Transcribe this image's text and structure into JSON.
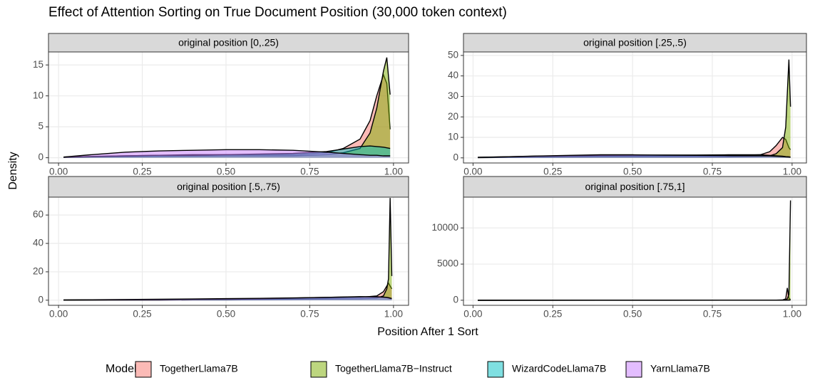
{
  "title": "Effect of Attention Sorting on True Document Position (30,000 token context)",
  "x_label": "Position After 1 Sort",
  "y_label": "Density",
  "legend_title": "Model",
  "chart_data": [
    {
      "type": "area",
      "title": "original position [0,.25)",
      "x": [
        0.015,
        0.1,
        0.2,
        0.3,
        0.4,
        0.5,
        0.6,
        0.7,
        0.8,
        0.85,
        0.9,
        0.93,
        0.95,
        0.97,
        0.98,
        0.99
      ],
      "series": [
        {
          "name": "TogetherLlama7B",
          "color": "#F8766D",
          "values": [
            0.1,
            0.2,
            0.3,
            0.4,
            0.5,
            0.5,
            0.5,
            0.5,
            0.8,
            1.5,
            3,
            6,
            10,
            13.4,
            12,
            4.6
          ]
        },
        {
          "name": "TogetherLlama7B−Instruct",
          "color": "#7CAE00",
          "values": [
            0.05,
            0.1,
            0.15,
            0.2,
            0.25,
            0.3,
            0.3,
            0.3,
            0.5,
            0.8,
            1.5,
            4,
            8,
            14,
            16.2,
            10.2
          ]
        },
        {
          "name": "WizardCodeLlama7B",
          "color": "#00BFC4",
          "values": [
            0.1,
            0.2,
            0.3,
            0.4,
            0.4,
            0.5,
            0.6,
            0.7,
            1.0,
            1.4,
            1.8,
            1.9,
            1.8,
            1.7,
            1.6,
            1.5
          ]
        },
        {
          "name": "YarnLlama7B",
          "color": "#C77CFF",
          "values": [
            0.1,
            0.5,
            0.9,
            1.1,
            1.2,
            1.3,
            1.3,
            1.2,
            0.9,
            0.7,
            0.5,
            0.4,
            0.4,
            0.3,
            0.3,
            0.3
          ]
        }
      ],
      "xlim": [
        -0.03,
        1.045
      ],
      "ylim": [
        -0.85,
        17.1
      ],
      "xticks": [
        {
          "value": 0,
          "label": "0.00"
        },
        {
          "value": 0.25,
          "label": "0.25"
        },
        {
          "value": 0.5,
          "label": "0.50"
        },
        {
          "value": 0.75,
          "label": "0.75"
        },
        {
          "value": 1,
          "label": "1.00"
        }
      ],
      "yticks": [
        0,
        5,
        10,
        15
      ],
      "grid": true
    },
    {
      "type": "area",
      "title": "original position [.25,.5)",
      "x": [
        0.015,
        0.1,
        0.2,
        0.3,
        0.4,
        0.5,
        0.6,
        0.7,
        0.8,
        0.9,
        0.93,
        0.95,
        0.97,
        0.98,
        0.99,
        0.995
      ],
      "series": [
        {
          "name": "TogetherLlama7B",
          "color": "#F8766D",
          "values": [
            0.2,
            0.4,
            0.6,
            0.8,
            1,
            1,
            1,
            1,
            1,
            1.5,
            3,
            6,
            10,
            9,
            5,
            4
          ]
        },
        {
          "name": "TogetherLlama7B−Instruct",
          "color": "#7CAE00",
          "values": [
            0.1,
            0.2,
            0.3,
            0.4,
            0.5,
            0.5,
            0.5,
            0.5,
            0.5,
            0.8,
            1,
            2,
            5,
            15,
            48,
            25
          ]
        },
        {
          "name": "WizardCodeLlama7B",
          "color": "#00BFC4",
          "values": [
            0.3,
            0.5,
            0.8,
            1,
            1.2,
            1.3,
            1.4,
            1.4,
            1.5,
            1.5,
            1.2,
            1,
            0.8,
            0.6,
            0.5,
            0.4
          ]
        },
        {
          "name": "YarnLlama7B",
          "color": "#C77CFF",
          "values": [
            0.2,
            0.5,
            0.9,
            1.2,
            1.5,
            1.5,
            1.3,
            1.2,
            1.1,
            1,
            0.9,
            0.8,
            0.6,
            0.5,
            0.4,
            0.3
          ]
        }
      ],
      "xlim": [
        -0.03,
        1.045
      ],
      "ylim": [
        -2.5,
        51.7
      ],
      "xticks": [
        {
          "value": 0,
          "label": "0.00"
        },
        {
          "value": 0.25,
          "label": "0.25"
        },
        {
          "value": 0.5,
          "label": "0.50"
        },
        {
          "value": 0.75,
          "label": "0.75"
        },
        {
          "value": 1,
          "label": "1.00"
        }
      ],
      "yticks": [
        0,
        10,
        20,
        30,
        40,
        50
      ],
      "grid": true
    },
    {
      "type": "area",
      "title": "original position [.5,.75)",
      "x": [
        0.015,
        0.1,
        0.2,
        0.3,
        0.4,
        0.5,
        0.6,
        0.7,
        0.8,
        0.9,
        0.95,
        0.97,
        0.98,
        0.985,
        0.99,
        0.995
      ],
      "series": [
        {
          "name": "TogetherLlama7B",
          "color": "#F8766D",
          "values": [
            0.1,
            0.2,
            0.3,
            0.4,
            0.5,
            0.6,
            0.8,
            1,
            1.5,
            2,
            3,
            6,
            10,
            12,
            10,
            8
          ]
        },
        {
          "name": "TogetherLlama7B−Instruct",
          "color": "#7CAE00",
          "values": [
            0.05,
            0.1,
            0.1,
            0.1,
            0.2,
            0.2,
            0.3,
            0.5,
            0.8,
            1,
            1.5,
            3,
            8,
            15,
            72,
            17
          ]
        },
        {
          "name": "WizardCodeLlama7B",
          "color": "#00BFC4",
          "values": [
            0.1,
            0.2,
            0.3,
            0.4,
            0.6,
            0.8,
            1,
            1.5,
            2,
            2.5,
            2.2,
            2,
            1.8,
            1.5,
            1.2,
            1
          ]
        },
        {
          "name": "YarnLlama7B",
          "color": "#C77CFF",
          "values": [
            0.2,
            0.3,
            0.5,
            0.7,
            0.9,
            1.1,
            1.3,
            1.6,
            2,
            2.4,
            2.5,
            2.2,
            2,
            1.8,
            1.5,
            1.2
          ]
        }
      ],
      "xlim": [
        -0.03,
        1.045
      ],
      "ylim": [
        -3.6,
        72.6
      ],
      "xticks": [
        {
          "value": 0,
          "label": "0.00"
        },
        {
          "value": 0.25,
          "label": "0.25"
        },
        {
          "value": 0.5,
          "label": "0.50"
        },
        {
          "value": 0.75,
          "label": "0.75"
        },
        {
          "value": 1,
          "label": "1.00"
        }
      ],
      "yticks": [
        0,
        20,
        40,
        60
      ],
      "grid": true
    },
    {
      "type": "area",
      "title": "original position [.75,1]",
      "x": [
        0.015,
        0.2,
        0.4,
        0.6,
        0.8,
        0.9,
        0.95,
        0.97,
        0.98,
        0.985,
        0.99,
        0.995
      ],
      "series": [
        {
          "name": "TogetherLlama7B",
          "color": "#F8766D",
          "values": [
            1,
            2,
            3,
            4,
            5,
            8,
            15,
            40,
            200,
            1700,
            300,
            100
          ]
        },
        {
          "name": "TogetherLlama7B−Instruct",
          "color": "#7CAE00",
          "values": [
            0.5,
            1,
            1,
            2,
            3,
            5,
            10,
            20,
            50,
            200,
            800,
            13800
          ]
        },
        {
          "name": "WizardCodeLlama7B",
          "color": "#00BFC4",
          "values": [
            2,
            3,
            4,
            5,
            6,
            8,
            10,
            12,
            15,
            20,
            30,
            40
          ]
        },
        {
          "name": "YarnLlama7B",
          "color": "#C77CFF",
          "values": [
            2,
            3,
            4,
            5,
            6,
            8,
            10,
            12,
            14,
            18,
            25,
            30
          ]
        }
      ],
      "xlim": [
        -0.03,
        1.045
      ],
      "ylim": [
        -700,
        14260
      ],
      "xticks": [
        {
          "value": 0,
          "label": "0.00"
        },
        {
          "value": 0.25,
          "label": "0.25"
        },
        {
          "value": 0.5,
          "label": "0.50"
        },
        {
          "value": 0.75,
          "label": "0.75"
        },
        {
          "value": 1,
          "label": "1.00"
        }
      ],
      "yticks": [
        0,
        5000,
        10000
      ],
      "grid": true
    }
  ]
}
